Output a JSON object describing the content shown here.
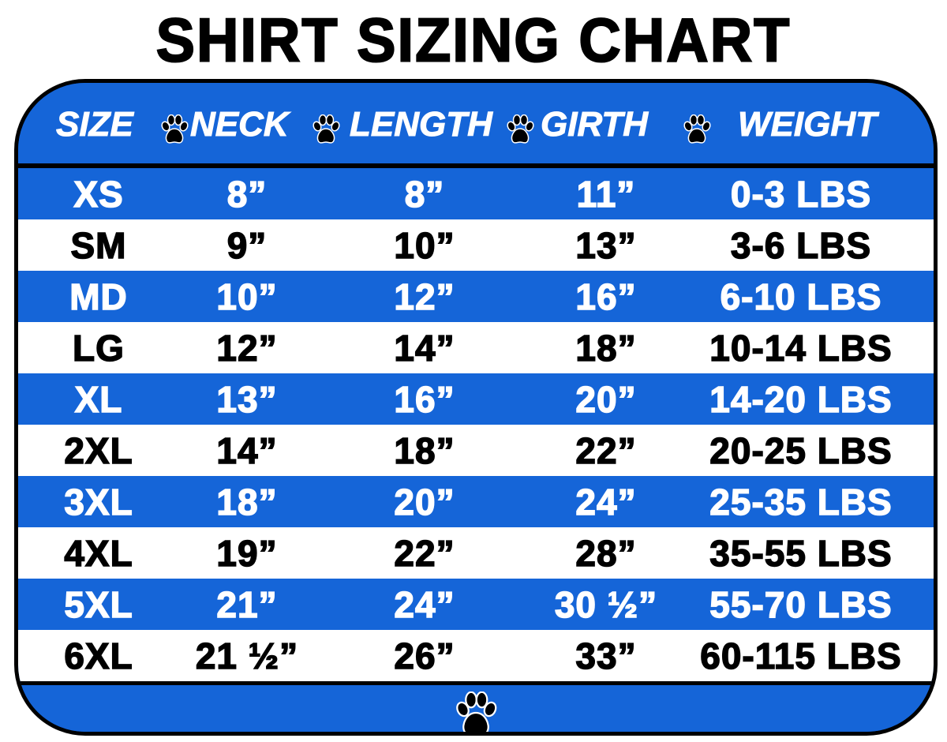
{
  "title": "SHIRT SIZING CHART",
  "colors": {
    "blue": "#1565d8",
    "white": "#ffffff",
    "text_dark": "#000000"
  },
  "header": [
    "SIZE",
    "NECK",
    "LENGTH",
    "GIRTH",
    "WEIGHT"
  ],
  "separator_icon": "paw-print-icon",
  "rows": [
    [
      "XS",
      "8”",
      "8”",
      "11”",
      "0-3 LBS"
    ],
    [
      "SM",
      "9”",
      "10”",
      "13”",
      "3-6 LBS"
    ],
    [
      "MD",
      "10”",
      "12”",
      "16”",
      "6-10 LBS"
    ],
    [
      "LG",
      "12”",
      "14”",
      "18”",
      "10-14 LBS"
    ],
    [
      "XL",
      "13”",
      "16”",
      "20”",
      "14-20 LBS"
    ],
    [
      "2XL",
      "14”",
      "18”",
      "22”",
      "20-25 LBS"
    ],
    [
      "3XL",
      "18”",
      "20”",
      "24”",
      "25-35 LBS"
    ],
    [
      "4XL",
      "19”",
      "22”",
      "28”",
      "35-55 LBS"
    ],
    [
      "5XL",
      "21”",
      "24”",
      "30 ½”",
      "55-70 LBS"
    ],
    [
      "6XL",
      "21 ½”",
      "26”",
      "33”",
      "60-115 LBS"
    ]
  ]
}
